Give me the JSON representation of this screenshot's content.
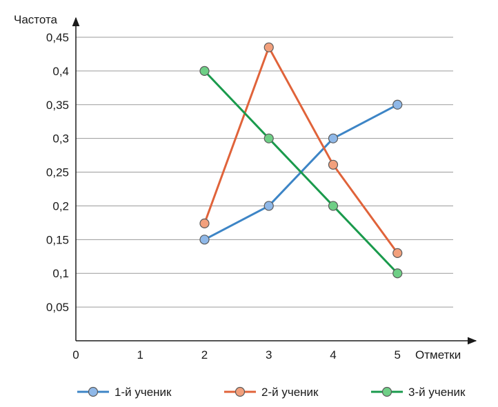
{
  "chart_data": {
    "type": "line",
    "ylabel": "Частота",
    "xlabel": "Отметки",
    "x_ticks": [
      "0",
      "1",
      "2",
      "3",
      "4",
      "5"
    ],
    "y_ticks": [
      "0,05",
      "0,1",
      "0,15",
      "0,2",
      "0,25",
      "0,3",
      "0,35",
      "0,4",
      "0,45"
    ],
    "y_tick_values": [
      0.05,
      0.1,
      0.15,
      0.2,
      0.25,
      0.3,
      0.35,
      0.4,
      0.45
    ],
    "xlim": [
      0,
      6
    ],
    "ylim": [
      0,
      0.475
    ],
    "grid": "horizontal",
    "legend_position": "bottom",
    "series": [
      {
        "name": "1-й ученик",
        "color": "#3d85c6",
        "marker_fill": "#8fb8e8",
        "x": [
          2,
          3,
          4,
          5
        ],
        "y": [
          0.15,
          0.2,
          0.3,
          0.35
        ]
      },
      {
        "name": "2-й ученик",
        "color": "#e0633a",
        "marker_fill": "#f2a07c",
        "x": [
          2,
          3,
          4,
          5
        ],
        "y": [
          0.174,
          0.435,
          0.261,
          0.13
        ]
      },
      {
        "name": "3-й ученик",
        "color": "#1a9a4c",
        "marker_fill": "#6fcf86",
        "x": [
          2,
          3,
          4,
          5
        ],
        "y": [
          0.4,
          0.3,
          0.2,
          0.1
        ]
      }
    ]
  }
}
